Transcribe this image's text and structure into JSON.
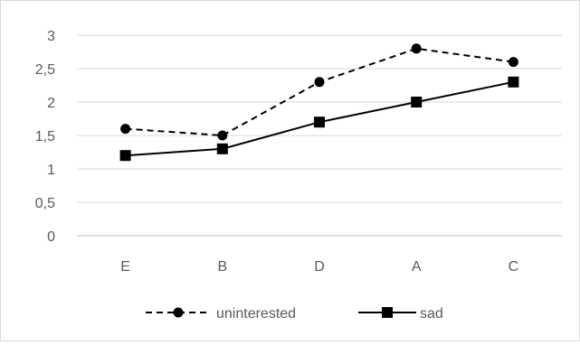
{
  "chart_data": {
    "type": "line",
    "title": "",
    "xlabel": "",
    "ylabel": "",
    "categories": [
      "E",
      "B",
      "D",
      "A",
      "C"
    ],
    "ylim": [
      0,
      3
    ],
    "yticks": [
      0,
      0.5,
      1,
      1.5,
      2,
      2.5,
      3
    ],
    "ytick_labels": [
      "0",
      "0,5",
      "1",
      "1,5",
      "2",
      "2,5",
      "3"
    ],
    "grid": true,
    "legend_position": "bottom",
    "series": [
      {
        "name": "uninterested",
        "values": [
          1.6,
          1.5,
          2.3,
          2.8,
          2.6
        ],
        "line_style": "dashed",
        "marker": "circle",
        "color": "#000000"
      },
      {
        "name": "sad",
        "values": [
          1.2,
          1.3,
          1.7,
          2.0,
          2.3
        ],
        "line_style": "solid",
        "marker": "square",
        "color": "#000000"
      }
    ]
  }
}
